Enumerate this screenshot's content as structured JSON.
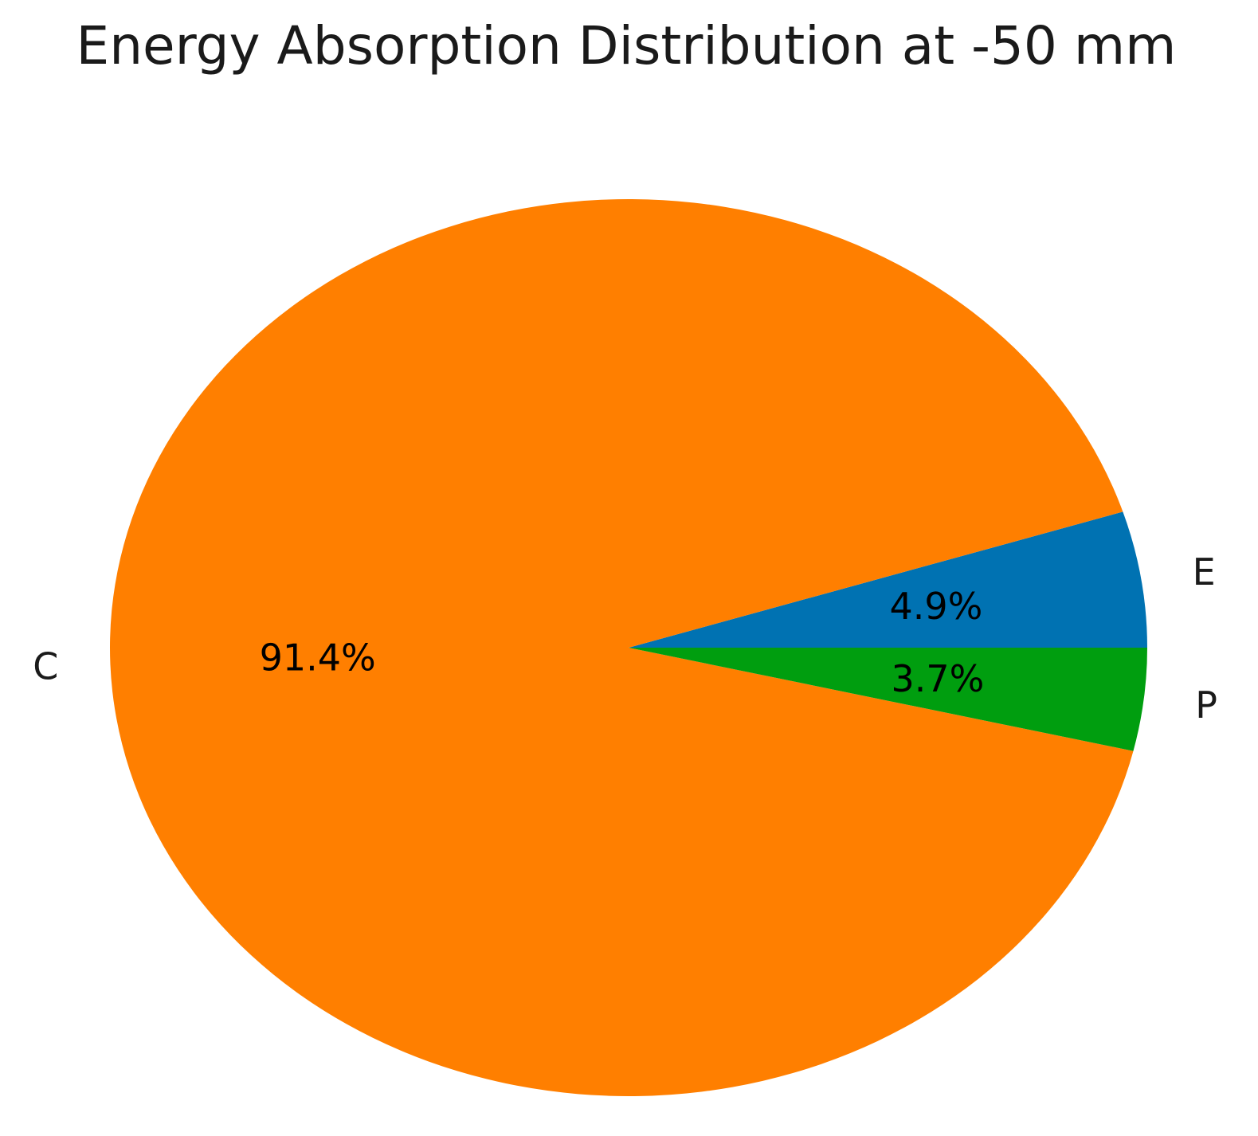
{
  "chart_data": {
    "type": "pie",
    "title": "Energy Absorption Distribution at -50 mm",
    "start_angle_deg": 0,
    "direction": "counterclockwise",
    "slices": [
      {
        "label": "E",
        "value": 4.9,
        "pct_label": "4.9%",
        "color": "#0072b2"
      },
      {
        "label": "C",
        "value": 91.4,
        "pct_label": "91.4%",
        "color": "#ff7f00"
      },
      {
        "label": "P",
        "value": 3.7,
        "pct_label": "3.7%",
        "color": "#009e0f"
      }
    ]
  }
}
